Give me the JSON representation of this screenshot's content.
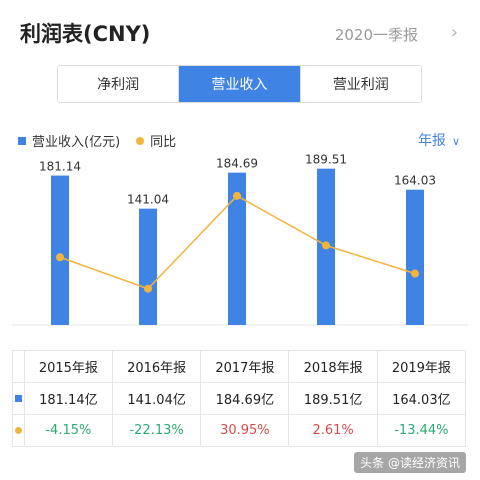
{
  "header": {
    "title": "利润表(CNY)",
    "period": "2020一季报"
  },
  "tabs": [
    {
      "label": "净利润",
      "active": false
    },
    {
      "label": "营业收入",
      "active": true
    },
    {
      "label": "营业利润",
      "active": false
    }
  ],
  "legend": {
    "bar_label": "营业收入(亿元)",
    "line_label": "同比"
  },
  "period_selector": {
    "label": "年报"
  },
  "colors": {
    "bar": "#3f84e5",
    "line": "#f2b43a",
    "positive": "#d84c4c",
    "negative": "#2bab72"
  },
  "chart_data": {
    "type": "bar",
    "categories": [
      "2015年报",
      "2016年报",
      "2017年报",
      "2018年报",
      "2019年报"
    ],
    "series": [
      {
        "name": "营业收入(亿元)",
        "type": "bar",
        "values": [
          181.14,
          141.04,
          184.69,
          189.51,
          164.03
        ],
        "labels": [
          "181.14",
          "141.04",
          "184.69",
          "189.51",
          "164.03"
        ]
      },
      {
        "name": "同比",
        "type": "line",
        "values": [
          -4.15,
          -22.13,
          30.95,
          2.61,
          -13.44
        ]
      }
    ]
  },
  "table": {
    "columns": [
      "2015年报",
      "2016年报",
      "2017年报",
      "2018年报",
      "2019年报"
    ],
    "revenue_row": [
      "181.14亿",
      "141.04亿",
      "184.69亿",
      "189.51亿",
      "164.03亿"
    ],
    "yoy_row": [
      "-4.15%",
      "-22.13%",
      "30.95%",
      "2.61%",
      "-13.44%"
    ]
  },
  "watermark": "头条 @读经济资讯"
}
